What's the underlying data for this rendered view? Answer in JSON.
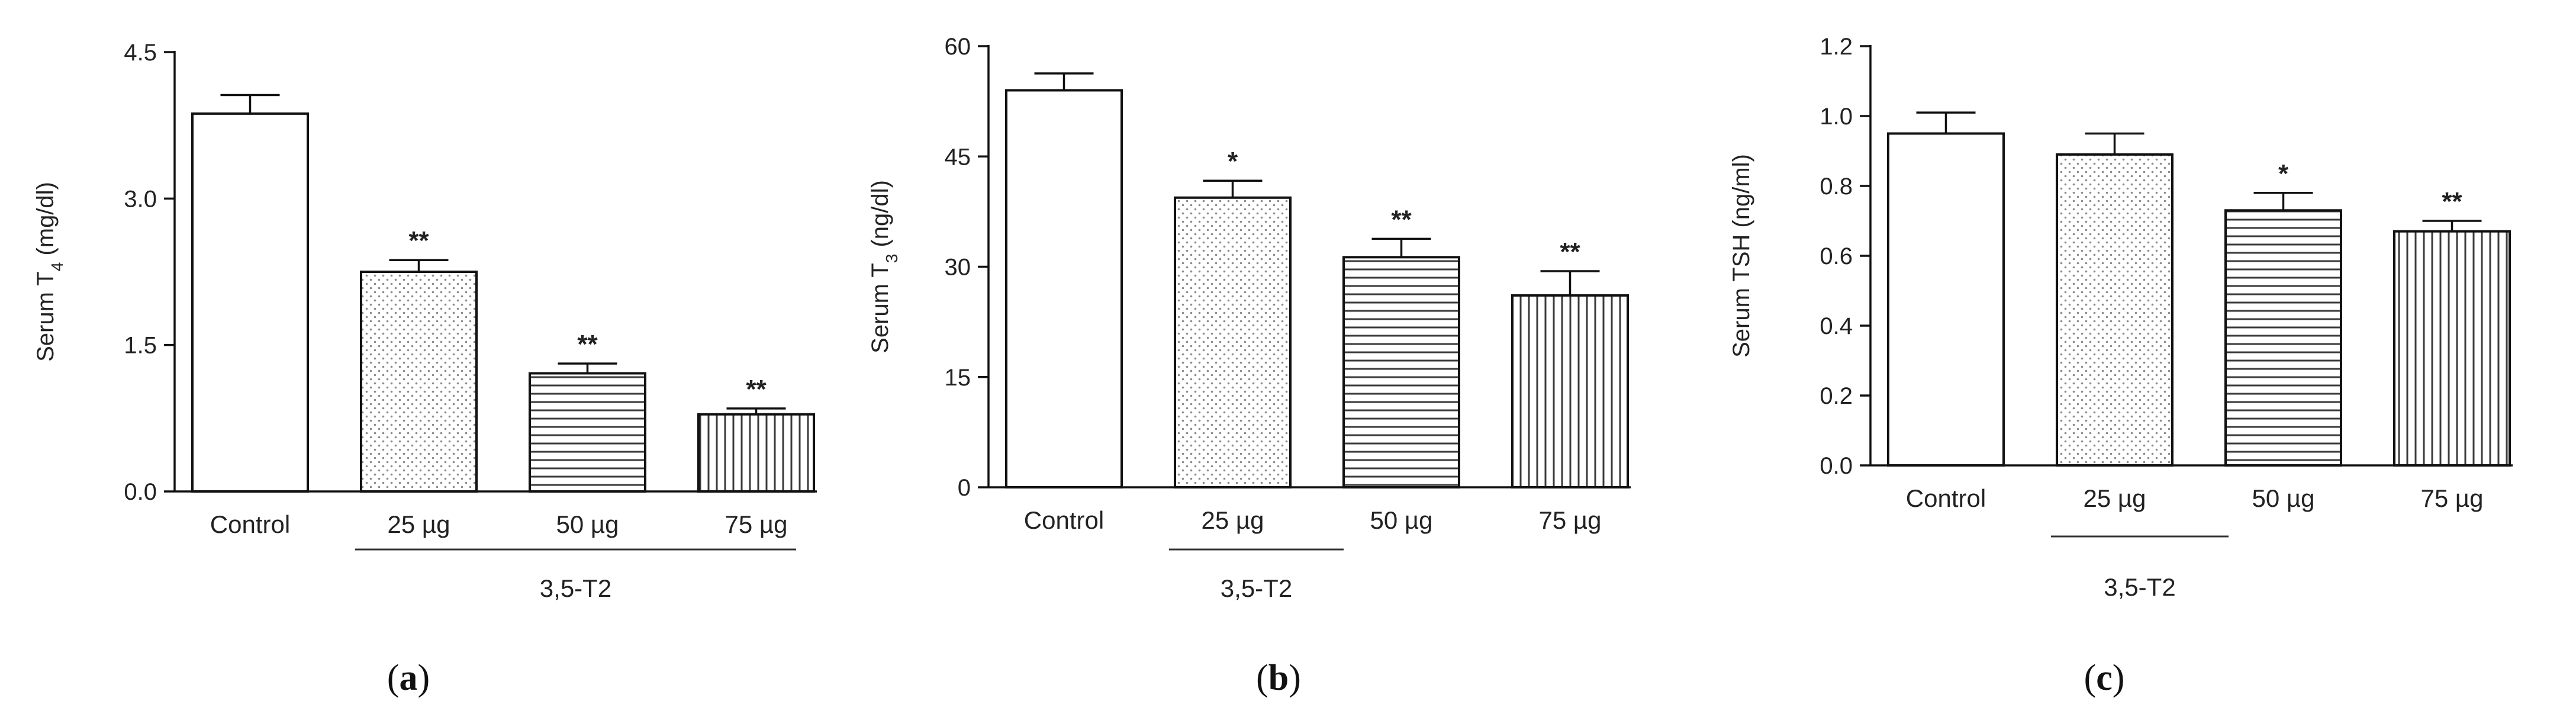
{
  "chart_data": [
    {
      "type": "bar",
      "panel_label": "a",
      "ylabel": "Serum T4 (mg/dl)",
      "ylabel_main": "Serum T",
      "ylabel_sub": "4",
      "ylabel_tail": " (mg/dl)",
      "ylim": [
        0,
        4.5
      ],
      "yticks": [
        "0.0",
        "1.5",
        "3.0",
        "4.5"
      ],
      "categories": [
        "Control",
        "25 µg",
        "50 µg",
        "75 µg"
      ],
      "values": [
        3.87,
        2.25,
        1.21,
        0.79
      ],
      "errors": [
        0.19,
        0.12,
        0.1,
        0.06
      ],
      "significance": [
        "",
        "**",
        "**",
        "**"
      ],
      "group_label": "3,5-T2",
      "patterns": [
        "none",
        "dots",
        "hlines",
        "vlines"
      ]
    },
    {
      "type": "bar",
      "panel_label": "b",
      "ylabel": "Serum T3 (ng/dl)",
      "ylabel_main": "Serum T",
      "ylabel_sub": "3",
      "ylabel_tail": " (ng/dl)",
      "ylim": [
        0,
        60
      ],
      "yticks": [
        "0",
        "15",
        "30",
        "45",
        "60"
      ],
      "categories": [
        "Control",
        "25 µg",
        "50 µg",
        "75 µg"
      ],
      "values": [
        54.0,
        39.4,
        31.3,
        26.1
      ],
      "errors": [
        2.3,
        2.3,
        2.5,
        3.3
      ],
      "significance": [
        "",
        "*",
        "**",
        "**"
      ],
      "group_label": "3,5-T2",
      "patterns": [
        "none",
        "dots",
        "hlines",
        "vlines"
      ]
    },
    {
      "type": "bar",
      "panel_label": "c",
      "ylabel": "Serum TSH (ng/ml)",
      "ylabel_main": "Serum TSH (ng/ml)",
      "ylabel_sub": "",
      "ylabel_tail": "",
      "ylim": [
        0,
        1.2
      ],
      "yticks": [
        "0.0",
        "0.2",
        "0.4",
        "0.6",
        "0.8",
        "1.0",
        "1.2"
      ],
      "categories": [
        "Control",
        "25 µg",
        "50 µg",
        "75 µg"
      ],
      "values": [
        0.95,
        0.89,
        0.73,
        0.67
      ],
      "errors": [
        0.06,
        0.06,
        0.05,
        0.03
      ],
      "significance": [
        "",
        "",
        "*",
        "**"
      ],
      "group_label": "3,5-T2",
      "patterns": [
        "none",
        "dots",
        "hlines",
        "vlines"
      ]
    }
  ]
}
